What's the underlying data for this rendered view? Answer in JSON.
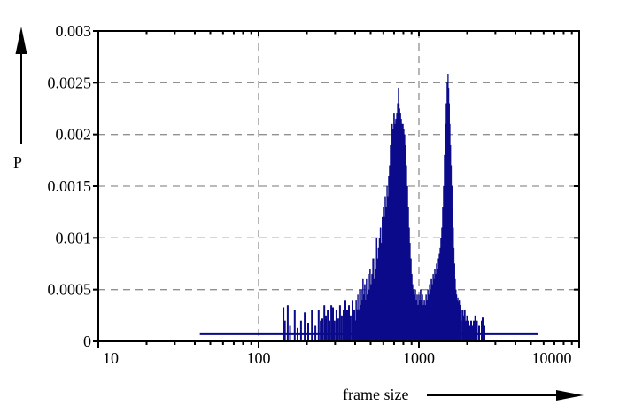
{
  "chart_data": {
    "type": "bar",
    "subtype": "impulse-frequency-distribution",
    "title": "",
    "xlabel": "frame size",
    "ylabel": "P",
    "x_scale": "log",
    "xlim": [
      10,
      10000
    ],
    "ylim": [
      0,
      0.003
    ],
    "grid": "dashed",
    "legend": "none",
    "x_ticks": {
      "values": [
        10,
        100,
        1000,
        10000
      ],
      "labels": [
        "10",
        "100",
        "1000",
        "10000"
      ]
    },
    "y_ticks": {
      "values": [
        0,
        0.0005,
        0.001,
        0.0015,
        0.002,
        0.0025,
        0.003
      ],
      "labels": [
        "0",
        "0.0005",
        "0.001",
        "0.0015",
        "0.002",
        "0.0025",
        "0.003"
      ]
    },
    "gridlines": {
      "horizontal_values": [
        0.0005,
        0.001,
        0.0015,
        0.002,
        0.0025
      ],
      "vertical_values": [
        100,
        1000
      ]
    },
    "colors": {
      "series": "#0a0a8a",
      "grid": "#909090",
      "axis": "#000000",
      "background": "#ffffff",
      "text": "#000000"
    },
    "baseline": {
      "x_start": 43,
      "x_end": 5570,
      "p": 7e-05
    },
    "series": [
      {
        "name": "frame-size-probability",
        "peaks": [
          {
            "x": 746,
            "p": 0.00245
          },
          {
            "x": 1522,
            "p": 0.00258
          }
        ],
        "area_points": [
          [
            400,
            0.0002
          ],
          [
            406,
            0.0004
          ],
          [
            411,
            0.0003
          ],
          [
            416,
            0.00045
          ],
          [
            421,
            0.0003
          ],
          [
            427,
            0.0005
          ],
          [
            432,
            0.00035
          ],
          [
            437,
            0.0005
          ],
          [
            443,
            0.0004
          ],
          [
            448,
            0.0006
          ],
          [
            454,
            0.00045
          ],
          [
            460,
            0.00055
          ],
          [
            466,
            0.0004
          ],
          [
            471,
            0.0006
          ],
          [
            477,
            0.00045
          ],
          [
            484,
            0.00065
          ],
          [
            490,
            0.0005
          ],
          [
            496,
            0.0007
          ],
          [
            503,
            0.00055
          ],
          [
            510,
            0.00065
          ],
          [
            517,
            0.0008
          ],
          [
            524,
            0.0006
          ],
          [
            531,
            0.0008
          ],
          [
            538,
            0.0007
          ],
          [
            545,
            0.001
          ],
          [
            552,
            0.0008
          ],
          [
            560,
            0.0009
          ],
          [
            568,
            0.001
          ],
          [
            576,
            0.0011
          ],
          [
            584,
            0.00095
          ],
          [
            593,
            0.0012
          ],
          [
            601,
            0.0013
          ],
          [
            609,
            0.0012
          ],
          [
            617,
            0.0014
          ],
          [
            625,
            0.0013
          ],
          [
            633,
            0.0015
          ],
          [
            641,
            0.0014
          ],
          [
            649,
            0.0016
          ],
          [
            657,
            0.0017
          ],
          [
            665,
            0.0019
          ],
          [
            673,
            0.0019
          ],
          [
            681,
            0.0021
          ],
          [
            690,
            0.00205
          ],
          [
            700,
            0.0022
          ],
          [
            709,
            0.0021
          ],
          [
            719,
            0.00215
          ],
          [
            728,
            0.0022
          ],
          [
            738,
            0.0023
          ],
          [
            746,
            0.00245
          ],
          [
            752,
            0.0023
          ],
          [
            758,
            0.00225
          ],
          [
            766,
            0.0022
          ],
          [
            776,
            0.00215
          ],
          [
            785,
            0.0021
          ],
          [
            795,
            0.0021
          ],
          [
            805,
            0.00205
          ],
          [
            815,
            0.002
          ],
          [
            826,
            0.0019
          ],
          [
            836,
            0.0017
          ],
          [
            847,
            0.0015
          ],
          [
            858,
            0.0013
          ],
          [
            869,
            0.0011
          ],
          [
            880,
            0.00095
          ],
          [
            891,
            0.0008
          ],
          [
            903,
            0.00065
          ],
          [
            914,
            0.00055
          ],
          [
            926,
            0.0005
          ],
          [
            938,
            0.00045
          ],
          [
            950,
            0.0005
          ],
          [
            962,
            0.0004
          ],
          [
            975,
            0.00045
          ],
          [
            987,
            0.00035
          ],
          [
            1000,
            0.00045
          ],
          [
            1012,
            0.0004
          ],
          [
            1025,
            0.0005
          ],
          [
            1039,
            0.0004
          ],
          [
            1052,
            0.00045
          ],
          [
            1066,
            0.00035
          ],
          [
            1080,
            0.0004
          ],
          [
            1094,
            0.00035
          ],
          [
            1108,
            0.00045
          ],
          [
            1122,
            0.0004
          ],
          [
            1137,
            0.0005
          ],
          [
            1151,
            0.00045
          ],
          [
            1166,
            0.00055
          ],
          [
            1180,
            0.0005
          ],
          [
            1196,
            0.0006
          ],
          [
            1211,
            0.00055
          ],
          [
            1227,
            0.00065
          ],
          [
            1242,
            0.0006
          ],
          [
            1258,
            0.0007
          ],
          [
            1274,
            0.00065
          ],
          [
            1290,
            0.00075
          ],
          [
            1307,
            0.0007
          ],
          [
            1324,
            0.0008
          ],
          [
            1341,
            0.00085
          ],
          [
            1358,
            0.0009
          ],
          [
            1375,
            0.001
          ],
          [
            1392,
            0.0011
          ],
          [
            1410,
            0.0013
          ],
          [
            1428,
            0.0015
          ],
          [
            1447,
            0.0018
          ],
          [
            1465,
            0.0021
          ],
          [
            1484,
            0.0023
          ],
          [
            1503,
            0.0025
          ],
          [
            1522,
            0.00258
          ],
          [
            1534,
            0.00245
          ],
          [
            1547,
            0.0023
          ],
          [
            1561,
            0.0021
          ],
          [
            1576,
            0.0019
          ],
          [
            1591,
            0.0017
          ],
          [
            1607,
            0.0015
          ],
          [
            1622,
            0.0013
          ],
          [
            1638,
            0.0011
          ],
          [
            1654,
            0.0009
          ],
          [
            1670,
            0.00075
          ],
          [
            1686,
            0.0006
          ],
          [
            1702,
            0.0005
          ],
          [
            1719,
            0.00045
          ],
          [
            1736,
            0.0004
          ],
          [
            1753,
            0.00042
          ],
          [
            1770,
            0.00038
          ],
          [
            1788,
            0.0004
          ],
          [
            1806,
            0.00035
          ],
          [
            1824,
            0.0003
          ],
          [
            1843,
            0.0002
          ]
        ],
        "impulses": [
          [
            143,
            0.00033
          ],
          [
            146,
            0.0002
          ],
          [
            152,
            0.00035
          ],
          [
            157,
            0.00015
          ],
          [
            168,
            0.0003
          ],
          [
            175,
            0.00013
          ],
          [
            184,
            0.0002
          ],
          [
            194,
            0.00028
          ],
          [
            204,
            0.00018
          ],
          [
            215,
            0.0003
          ],
          [
            226,
            0.00015
          ],
          [
            237,
            0.0003
          ],
          [
            244,
            0.0002
          ],
          [
            250,
            0.00022
          ],
          [
            257,
            0.00035
          ],
          [
            263,
            0.00025
          ],
          [
            270,
            0.0003
          ],
          [
            277,
            0.0002
          ],
          [
            284,
            0.00035
          ],
          [
            291,
            0.00033
          ],
          [
            298,
            0.0002
          ],
          [
            306,
            0.0003
          ],
          [
            314,
            0.00022
          ],
          [
            322,
            0.00035
          ],
          [
            330,
            0.00025
          ],
          [
            339,
            0.0003
          ],
          [
            348,
            0.0004
          ],
          [
            357,
            0.0003
          ],
          [
            366,
            0.00035
          ],
          [
            375,
            0.00025
          ],
          [
            385,
            0.0004
          ],
          [
            395,
            0.0003
          ],
          [
            1870,
            0.0003
          ],
          [
            1900,
            0.00025
          ],
          [
            1930,
            0.0003
          ],
          [
            1963,
            0.0002
          ],
          [
            2000,
            0.00025
          ],
          [
            2040,
            0.0002
          ],
          [
            2080,
            0.00015
          ],
          [
            2119,
            0.0002
          ],
          [
            2160,
            0.00015
          ],
          [
            2202,
            0.0002
          ],
          [
            2250,
            0.00025
          ],
          [
            2300,
            0.0002
          ],
          [
            2376,
            0.00015
          ],
          [
            2468,
            0.0002
          ],
          [
            2500,
            0.00023
          ],
          [
            2564,
            0.00015
          ]
        ]
      }
    ]
  }
}
